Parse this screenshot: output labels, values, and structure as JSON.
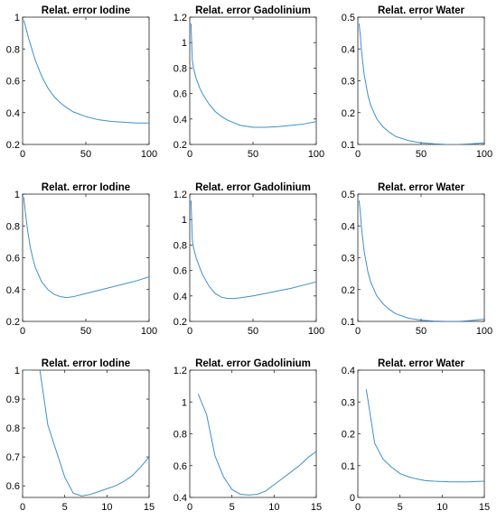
{
  "line_color": "#3C8FCE",
  "chart_data": [
    {
      "type": "line",
      "title": "Relat. error Iodine",
      "xlim": [
        0,
        100
      ],
      "ylim": [
        0.2,
        1
      ],
      "xticks": [
        0,
        50,
        100
      ],
      "yticks": [
        0.2,
        0.4,
        0.6,
        0.8,
        1
      ],
      "xtick_labels": [
        "0",
        "50",
        "100"
      ],
      "ytick_labels": [
        "0.2",
        "0.4",
        "0.6",
        "0.8",
        "1"
      ],
      "x": [
        1,
        2,
        5,
        10,
        15,
        20,
        25,
        30,
        35,
        40,
        50,
        60,
        70,
        80,
        90,
        100
      ],
      "y": [
        0.98,
        0.95,
        0.86,
        0.73,
        0.63,
        0.555,
        0.5,
        0.46,
        0.43,
        0.405,
        0.375,
        0.355,
        0.345,
        0.34,
        0.335,
        0.335
      ]
    },
    {
      "type": "line",
      "title": "Relat. error Gadolinium",
      "xlim": [
        0,
        100
      ],
      "ylim": [
        0.2,
        1.2
      ],
      "xticks": [
        0,
        50,
        100
      ],
      "yticks": [
        0.2,
        0.4,
        0.6,
        0.8,
        1,
        1.2
      ],
      "xtick_labels": [
        "0",
        "50",
        "100"
      ],
      "ytick_labels": [
        "0.2",
        "0.4",
        "0.6",
        "0.8",
        "1",
        "1.2"
      ],
      "x": [
        1,
        1.5,
        2,
        3,
        5,
        8,
        10,
        15,
        20,
        25,
        30,
        40,
        50,
        60,
        70,
        80,
        90,
        100
      ],
      "y": [
        1.15,
        1.0,
        0.86,
        0.8,
        0.72,
        0.64,
        0.6,
        0.52,
        0.46,
        0.42,
        0.39,
        0.35,
        0.335,
        0.335,
        0.34,
        0.35,
        0.36,
        0.38
      ]
    },
    {
      "type": "line",
      "title": "Relat. error Water",
      "xlim": [
        0,
        100
      ],
      "ylim": [
        0.1,
        0.5
      ],
      "xticks": [
        0,
        50,
        100
      ],
      "yticks": [
        0.1,
        0.2,
        0.3,
        0.4,
        0.5
      ],
      "xtick_labels": [
        "0",
        "50",
        "100"
      ],
      "ytick_labels": [
        "0.1",
        "0.2",
        "0.3",
        "0.4",
        "0.5"
      ],
      "x": [
        1,
        2,
        3,
        5,
        8,
        10,
        15,
        20,
        25,
        30,
        40,
        50,
        60,
        70,
        80,
        90,
        100
      ],
      "y": [
        0.48,
        0.44,
        0.39,
        0.32,
        0.255,
        0.225,
        0.18,
        0.155,
        0.138,
        0.125,
        0.112,
        0.105,
        0.102,
        0.1,
        0.1,
        0.102,
        0.105
      ]
    },
    {
      "type": "line",
      "title": "Relat. error Iodine",
      "xlim": [
        0,
        100
      ],
      "ylim": [
        0.2,
        1
      ],
      "xticks": [
        0,
        50,
        100
      ],
      "yticks": [
        0.2,
        0.4,
        0.6,
        0.8,
        1
      ],
      "xtick_labels": [
        "0",
        "50",
        "100"
      ],
      "ytick_labels": [
        "0.2",
        "0.4",
        "0.6",
        "0.8",
        "1"
      ],
      "x": [
        1,
        2,
        4,
        6,
        8,
        10,
        15,
        20,
        25,
        30,
        35,
        40,
        50,
        60,
        70,
        80,
        90,
        100
      ],
      "y": [
        0.98,
        0.9,
        0.77,
        0.67,
        0.6,
        0.54,
        0.45,
        0.4,
        0.37,
        0.355,
        0.35,
        0.355,
        0.375,
        0.395,
        0.415,
        0.435,
        0.455,
        0.48
      ]
    },
    {
      "type": "line",
      "title": "Relat. error Gadolinium",
      "xlim": [
        0,
        100
      ],
      "ylim": [
        0.2,
        1.2
      ],
      "xticks": [
        0,
        50,
        100
      ],
      "yticks": [
        0.2,
        0.4,
        0.6,
        0.8,
        1,
        1.2
      ],
      "xtick_labels": [
        "0",
        "50",
        "100"
      ],
      "ytick_labels": [
        "0.2",
        "0.4",
        "0.6",
        "0.8",
        "1",
        "1.2"
      ],
      "x": [
        1,
        1.5,
        2,
        3,
        5,
        8,
        10,
        15,
        20,
        25,
        30,
        35,
        40,
        50,
        60,
        70,
        80,
        90,
        100
      ],
      "y": [
        1.15,
        1.0,
        0.84,
        0.78,
        0.7,
        0.62,
        0.57,
        0.48,
        0.42,
        0.39,
        0.38,
        0.38,
        0.385,
        0.4,
        0.42,
        0.44,
        0.46,
        0.485,
        0.51
      ]
    },
    {
      "type": "line",
      "title": "Relat. error Water",
      "xlim": [
        0,
        100
      ],
      "ylim": [
        0.1,
        0.5
      ],
      "xticks": [
        0,
        50,
        100
      ],
      "yticks": [
        0.1,
        0.2,
        0.3,
        0.4,
        0.5
      ],
      "xtick_labels": [
        "0",
        "50",
        "100"
      ],
      "ytick_labels": [
        "0.1",
        "0.2",
        "0.3",
        "0.4",
        "0.5"
      ],
      "x": [
        1,
        2,
        3,
        5,
        8,
        10,
        15,
        20,
        25,
        30,
        40,
        50,
        60,
        70,
        80,
        90,
        100
      ],
      "y": [
        0.48,
        0.44,
        0.39,
        0.32,
        0.255,
        0.225,
        0.18,
        0.155,
        0.137,
        0.124,
        0.11,
        0.104,
        0.101,
        0.1,
        0.1,
        0.103,
        0.107
      ]
    },
    {
      "type": "line",
      "title": "Relat. error Iodine",
      "xlim": [
        0,
        15
      ],
      "ylim": [
        0.56,
        1
      ],
      "xticks": [
        0,
        5,
        10,
        15
      ],
      "yticks": [
        0.6,
        0.7,
        0.8,
        0.9,
        1
      ],
      "xtick_labels": [
        "0",
        "5",
        "10",
        "15"
      ],
      "ytick_labels": [
        "0.6",
        "0.7",
        "0.8",
        "0.9",
        "1"
      ],
      "x": [
        0,
        1,
        2,
        3,
        4,
        5,
        6,
        7,
        8,
        9,
        10,
        11,
        12,
        13,
        14,
        15
      ],
      "y": [
        1.0,
        1.0,
        1.01,
        0.81,
        0.72,
        0.63,
        0.575,
        0.565,
        0.57,
        0.58,
        0.59,
        0.6,
        0.615,
        0.635,
        0.665,
        0.7
      ]
    },
    {
      "type": "line",
      "title": "Relat. error Gadolinium",
      "xlim": [
        0,
        15
      ],
      "ylim": [
        0.4,
        1.2
      ],
      "xticks": [
        0,
        5,
        10,
        15
      ],
      "yticks": [
        0.4,
        0.6,
        0.8,
        1,
        1.2
      ],
      "xtick_labels": [
        "0",
        "5",
        "10",
        "15"
      ],
      "ytick_labels": [
        "0.4",
        "0.6",
        "0.8",
        "1",
        "1.2"
      ],
      "x": [
        1,
        2,
        3,
        4,
        5,
        6,
        7,
        8,
        9,
        10,
        11,
        12,
        13,
        14,
        15
      ],
      "y": [
        1.05,
        0.92,
        0.66,
        0.53,
        0.45,
        0.42,
        0.415,
        0.42,
        0.44,
        0.48,
        0.52,
        0.56,
        0.6,
        0.65,
        0.69
      ]
    },
    {
      "type": "line",
      "title": "Relat. error Water",
      "xlim": [
        0,
        15
      ],
      "ylim": [
        0,
        0.4
      ],
      "xticks": [
        0,
        5,
        10,
        15
      ],
      "yticks": [
        0,
        0.1,
        0.2,
        0.3,
        0.4
      ],
      "xtick_labels": [
        "0",
        "5",
        "10",
        "15"
      ],
      "ytick_labels": [
        "0",
        "0.1",
        "0.2",
        "0.3",
        "0.4"
      ],
      "x": [
        1,
        2,
        3,
        4,
        5,
        6,
        7,
        8,
        9,
        10,
        11,
        12,
        13,
        14,
        15
      ],
      "y": [
        0.34,
        0.17,
        0.12,
        0.095,
        0.075,
        0.065,
        0.058,
        0.053,
        0.051,
        0.05,
        0.049,
        0.049,
        0.049,
        0.05,
        0.051
      ]
    }
  ]
}
